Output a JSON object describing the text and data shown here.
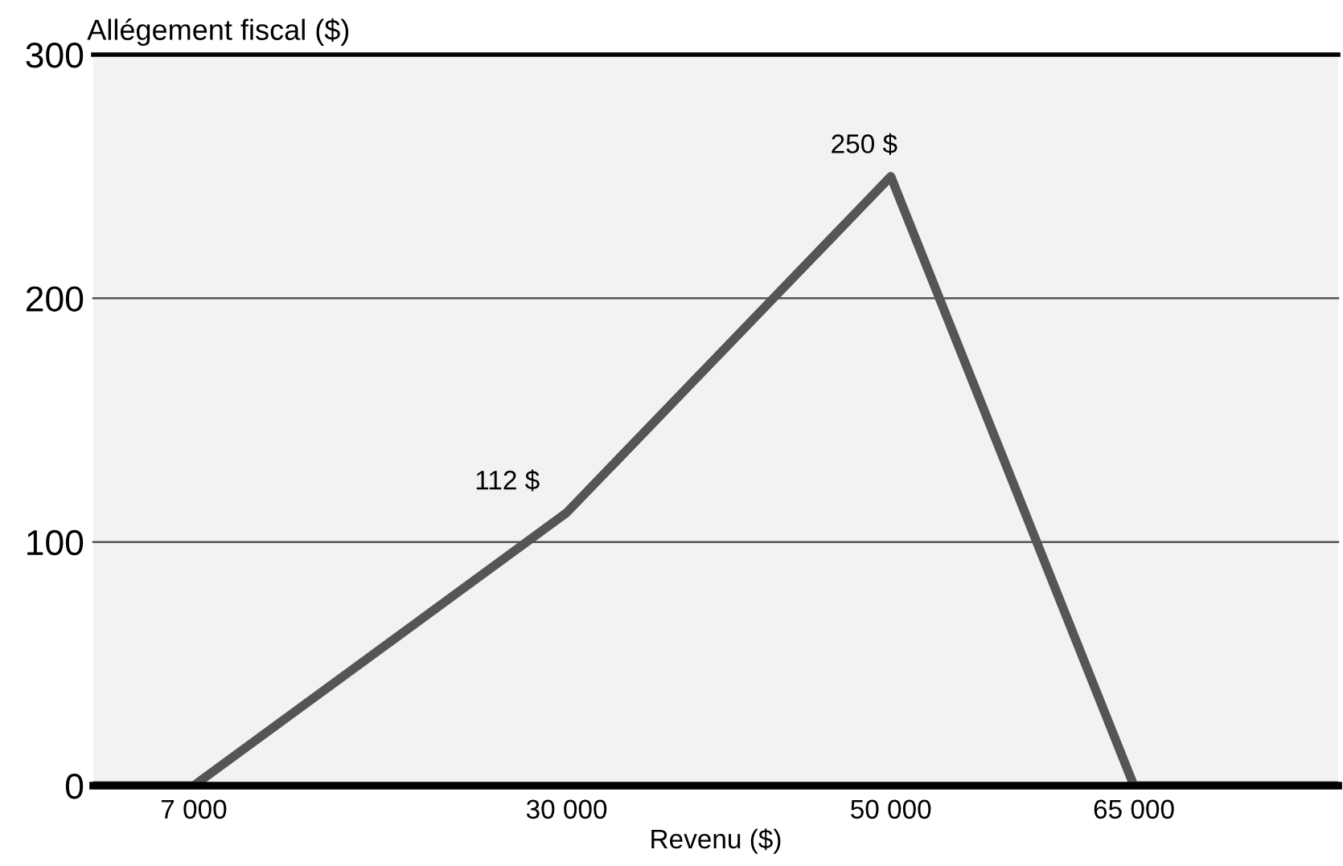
{
  "chart_data": {
    "type": "line",
    "xlabel": "Revenu ($)",
    "ylabel": "Allégement fiscal ($)",
    "x": [
      800,
      7000,
      30000,
      50000,
      65000,
      77600
    ],
    "series": [
      {
        "color": "#555555",
        "values": [
          0,
          0,
          112,
          250,
          0,
          0
        ]
      }
    ],
    "xlim": [
      800,
      77600
    ],
    "xticks": [
      {
        "value": 7000,
        "label": "7 000"
      },
      {
        "value": 30000,
        "label": "30 000"
      },
      {
        "value": 50000,
        "label": "50 000"
      },
      {
        "value": 65000,
        "label": "65 000"
      }
    ],
    "ylim": [
      0,
      300
    ],
    "yticks": [
      0,
      100,
      200,
      300
    ],
    "grid": "y",
    "marker": "none",
    "line_style": "solid",
    "annotations": [
      {
        "text": "112 $",
        "x": 30000,
        "y": 112
      },
      {
        "text": "250 $",
        "x": 50000,
        "y": 250
      }
    ]
  }
}
